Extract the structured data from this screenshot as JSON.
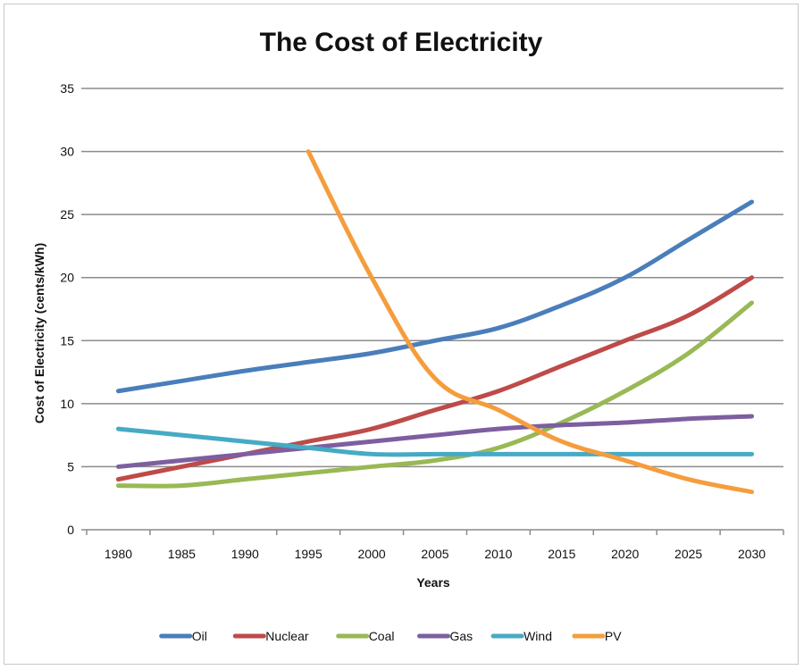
{
  "chart_data": {
    "type": "line",
    "title": "The Cost of Electricity",
    "xlabel": "Years",
    "ylabel": "Cost of Electricity (cents/kWh)",
    "ylim": [
      0,
      35
    ],
    "y_ticks": [
      0,
      5,
      10,
      15,
      20,
      25,
      30,
      35
    ],
    "categories": [
      "1980",
      "1985",
      "1990",
      "1995",
      "2000",
      "2005",
      "2010",
      "2015",
      "2020",
      "2025",
      "2030"
    ],
    "grid": true,
    "legend_position": "bottom",
    "series": [
      {
        "name": "Oil",
        "color": "#4a7ebb",
        "values": [
          11,
          11.8,
          12.6,
          13.3,
          14,
          15,
          16,
          17.8,
          20,
          23,
          26
        ]
      },
      {
        "name": "Nuclear",
        "color": "#be4b48",
        "values": [
          4,
          5,
          6,
          7,
          8,
          9.5,
          11,
          13,
          15,
          17,
          20
        ]
      },
      {
        "name": "Coal",
        "color": "#98b954",
        "values": [
          3.5,
          3.5,
          4,
          4.5,
          5,
          5.5,
          6.5,
          8.5,
          11,
          14,
          18
        ]
      },
      {
        "name": "Gas",
        "color": "#7d5fa0",
        "values": [
          5,
          5.5,
          6,
          6.5,
          7,
          7.5,
          8,
          8.3,
          8.5,
          8.8,
          9
        ]
      },
      {
        "name": "Wind",
        "color": "#46aac5",
        "values": [
          8,
          7.5,
          7,
          6.5,
          6,
          6,
          6,
          6,
          6,
          6,
          6
        ]
      },
      {
        "name": "PV",
        "color": "#f59d3d",
        "values": [
          null,
          null,
          null,
          30,
          20,
          12,
          9.5,
          7,
          5.5,
          4,
          3
        ]
      }
    ]
  }
}
